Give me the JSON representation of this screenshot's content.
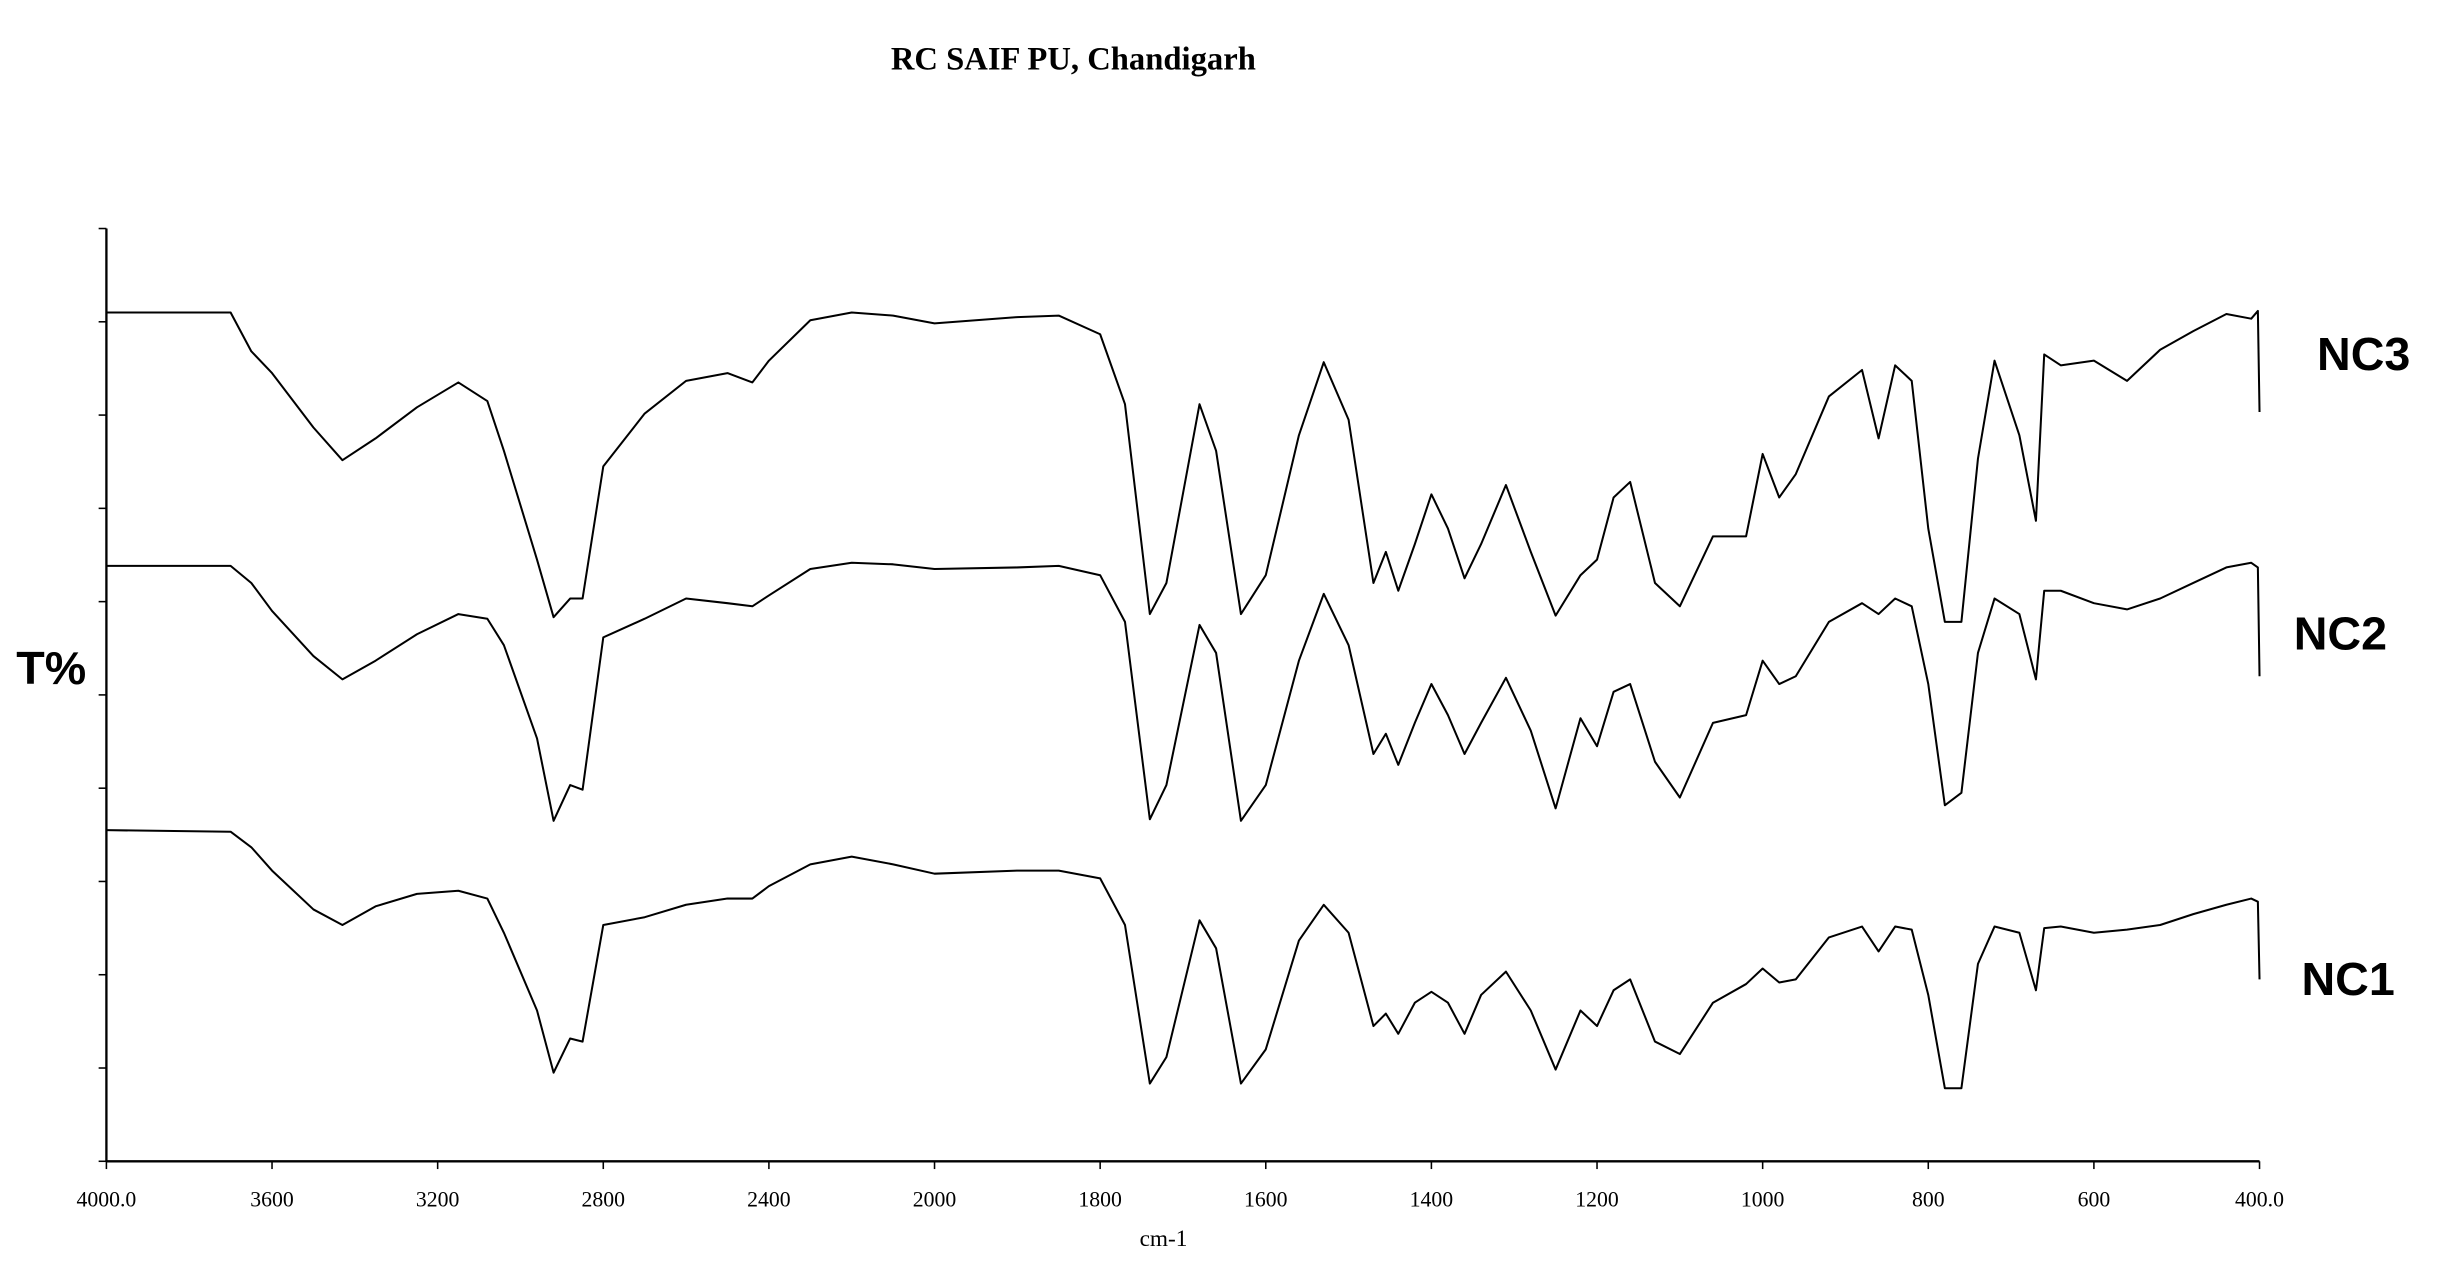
{
  "chart_data": {
    "type": "line",
    "title": "RC SAIF PU, Chandigarh",
    "xlabel": "cm-1",
    "ylabel": "T%",
    "xlim": [
      4000,
      400
    ],
    "xticks": [
      {
        "value": 4000,
        "label": "4000.0"
      },
      3600,
      3200,
      2800,
      2400,
      2000,
      1800,
      1600,
      1400,
      1200,
      1000,
      800,
      600,
      {
        "value": 400,
        "label": "400.0"
      }
    ],
    "ylim": [
      0,
      600
    ],
    "yticks": [
      0,
      60,
      120,
      180,
      240,
      300,
      360,
      420,
      480,
      540,
      600
    ],
    "x": [
      4000,
      3700,
      3650,
      3600,
      3500,
      3430,
      3350,
      3250,
      3150,
      3080,
      3040,
      2960,
      2920,
      2880,
      2850,
      2800,
      2700,
      2600,
      2500,
      2440,
      2400,
      2300,
      2200,
      2100,
      2000,
      1900,
      1850,
      1800,
      1770,
      1740,
      1720,
      1680,
      1660,
      1630,
      1600,
      1560,
      1530,
      1500,
      1470,
      1455,
      1440,
      1420,
      1400,
      1380,
      1360,
      1340,
      1310,
      1280,
      1250,
      1220,
      1200,
      1180,
      1160,
      1130,
      1100,
      1060,
      1020,
      1000,
      980,
      960,
      920,
      880,
      860,
      840,
      820,
      800,
      780,
      760,
      740,
      720,
      690,
      670,
      660,
      640,
      600,
      560,
      520,
      480,
      440,
      410,
      402,
      400
    ],
    "series": [
      {
        "name": "NC3",
        "color": "#000000",
        "values": [
          546,
          546,
          521,
          507,
          472,
          451,
          465,
          485,
          501,
          489,
          457,
          387,
          350,
          362,
          362,
          447,
          481,
          502,
          507,
          501,
          515,
          541,
          546,
          544,
          539,
          543,
          544,
          532,
          487,
          352,
          372,
          487,
          457,
          352,
          377,
          467,
          514,
          477,
          372,
          392,
          367,
          397,
          429,
          407,
          375,
          397,
          435,
          392,
          351,
          377,
          387,
          427,
          437,
          372,
          357,
          402,
          402,
          455,
          427,
          442,
          492,
          509,
          465,
          512,
          502,
          407,
          347,
          347,
          452,
          515,
          467,
          412,
          519,
          512,
          515,
          502,
          522,
          534,
          545,
          542,
          547,
          482
        ]
      },
      {
        "name": "NC2",
        "color": "#000000",
        "values": [
          383,
          383,
          372,
          354,
          325,
          310,
          322,
          339,
          352,
          349,
          332,
          272,
          219,
          242,
          239,
          337,
          349,
          362,
          359,
          357,
          364,
          381,
          385,
          384,
          381,
          382,
          383,
          377,
          347,
          220,
          242,
          345,
          327,
          219,
          242,
          322,
          365,
          332,
          262,
          275,
          255,
          282,
          307,
          287,
          262,
          282,
          311,
          277,
          227,
          285,
          267,
          302,
          307,
          257,
          234,
          282,
          287,
          322,
          307,
          312,
          347,
          359,
          352,
          362,
          357,
          307,
          229,
          237,
          327,
          362,
          352,
          310,
          367,
          367,
          359,
          355,
          362,
          372,
          382,
          385,
          382,
          312
        ]
      },
      {
        "name": "NC1",
        "color": "#000000",
        "values": [
          213,
          212,
          202,
          187,
          162,
          152,
          164,
          172,
          174,
          169,
          147,
          97,
          57,
          79,
          77,
          152,
          157,
          165,
          169,
          169,
          177,
          191,
          196,
          191,
          185,
          187,
          187,
          182,
          152,
          50,
          67,
          155,
          137,
          50,
          72,
          142,
          165,
          147,
          87,
          95,
          82,
          102,
          109,
          102,
          82,
          107,
          122,
          97,
          59,
          97,
          87,
          110,
          117,
          77,
          69,
          102,
          114,
          124,
          115,
          117,
          144,
          151,
          135,
          151,
          149,
          107,
          47,
          47,
          127,
          151,
          147,
          110,
          150,
          151,
          147,
          149,
          152,
          159,
          165,
          169,
          167,
          117
        ]
      }
    ]
  }
}
